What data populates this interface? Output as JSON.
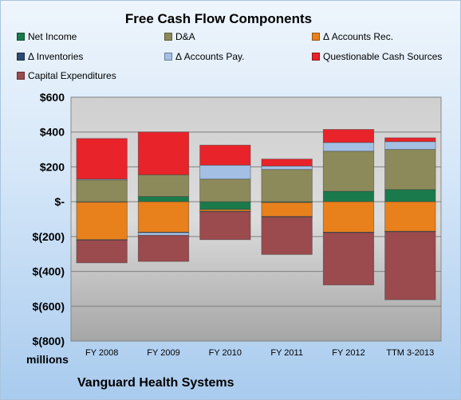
{
  "chart_data": {
    "type": "bar",
    "stacked": true,
    "title": "Free Cash Flow Components",
    "units_label": "millions",
    "footer": "Vanguard Health Systems",
    "categories": [
      "FY 2008",
      "FY 2009",
      "FY 2010",
      "FY 2011",
      "FY 2012",
      "TTM 3-2013"
    ],
    "ylim": [
      -800,
      600
    ],
    "yticks": [
      600,
      400,
      200,
      0,
      -200,
      -400,
      -600,
      -800
    ],
    "ytick_labels": [
      "$600",
      "$400",
      "$200",
      "$-",
      "$(200)",
      "$(400)",
      "$(600)",
      "$(800)"
    ],
    "grid": true,
    "legend_placement": "top",
    "series": [
      {
        "name": "Net Income",
        "color": "#1a7a4c",
        "values": [
          -3,
          30,
          -45,
          -5,
          60,
          70
        ]
      },
      {
        "name": "D&A",
        "color": "#8c8a5a",
        "values": [
          125,
          125,
          130,
          185,
          230,
          230
        ]
      },
      {
        "name": "Δ Accounts Rec.",
        "color": "#e8801c",
        "values": [
          -215,
          -175,
          -10,
          -80,
          -175,
          -170
        ]
      },
      {
        "name": "Δ Inventories",
        "color": "#2d4b6e",
        "values": [
          -3,
          -3,
          -3,
          -3,
          -3,
          -3
        ]
      },
      {
        "name": "Δ Accounts Pay.",
        "color": "#a3c0e4",
        "values": [
          5,
          -15,
          80,
          20,
          50,
          45
        ]
      },
      {
        "name": "Questionable Cash Sources",
        "color": "#e8232a",
        "values": [
          233,
          245,
          115,
          40,
          75,
          22
        ]
      },
      {
        "name": "Capital Expenditures",
        "color": "#9b4a4e",
        "values": [
          -130,
          -150,
          -160,
          -215,
          -300,
          -390
        ]
      }
    ]
  }
}
